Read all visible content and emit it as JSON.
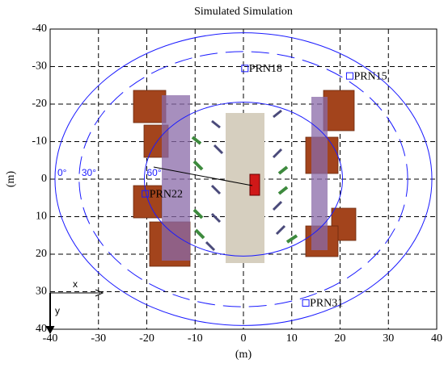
{
  "chart_data": {
    "type": "scatter",
    "title": "Simulated Simulation",
    "x_label": "(m)",
    "y_label": "(m)",
    "xlim": [
      -40,
      40
    ],
    "ylim": [
      -40,
      40
    ],
    "y_inverted": true,
    "xticks": [
      -40,
      -30,
      -20,
      -10,
      0,
      10,
      20,
      30,
      40
    ],
    "yticks": [
      -40,
      -30,
      -20,
      -10,
      0,
      10,
      20,
      30,
      40
    ],
    "grid": true,
    "points": {
      "color": "#1a1aff",
      "labels": [
        "PRN18",
        "PRN15",
        "PRN22",
        "PRN31"
      ],
      "x": [
        0.3,
        22,
        -20.3,
        12.9
      ],
      "y": [
        -29.5,
        -27.5,
        3.9,
        33
      ]
    },
    "rings": {
      "color": "#1a1aff",
      "labels": [
        "0°",
        "30°",
        "60°"
      ],
      "radius": [
        39,
        34,
        20.5
      ]
    },
    "annotations": [
      "x",
      "y"
    ]
  }
}
